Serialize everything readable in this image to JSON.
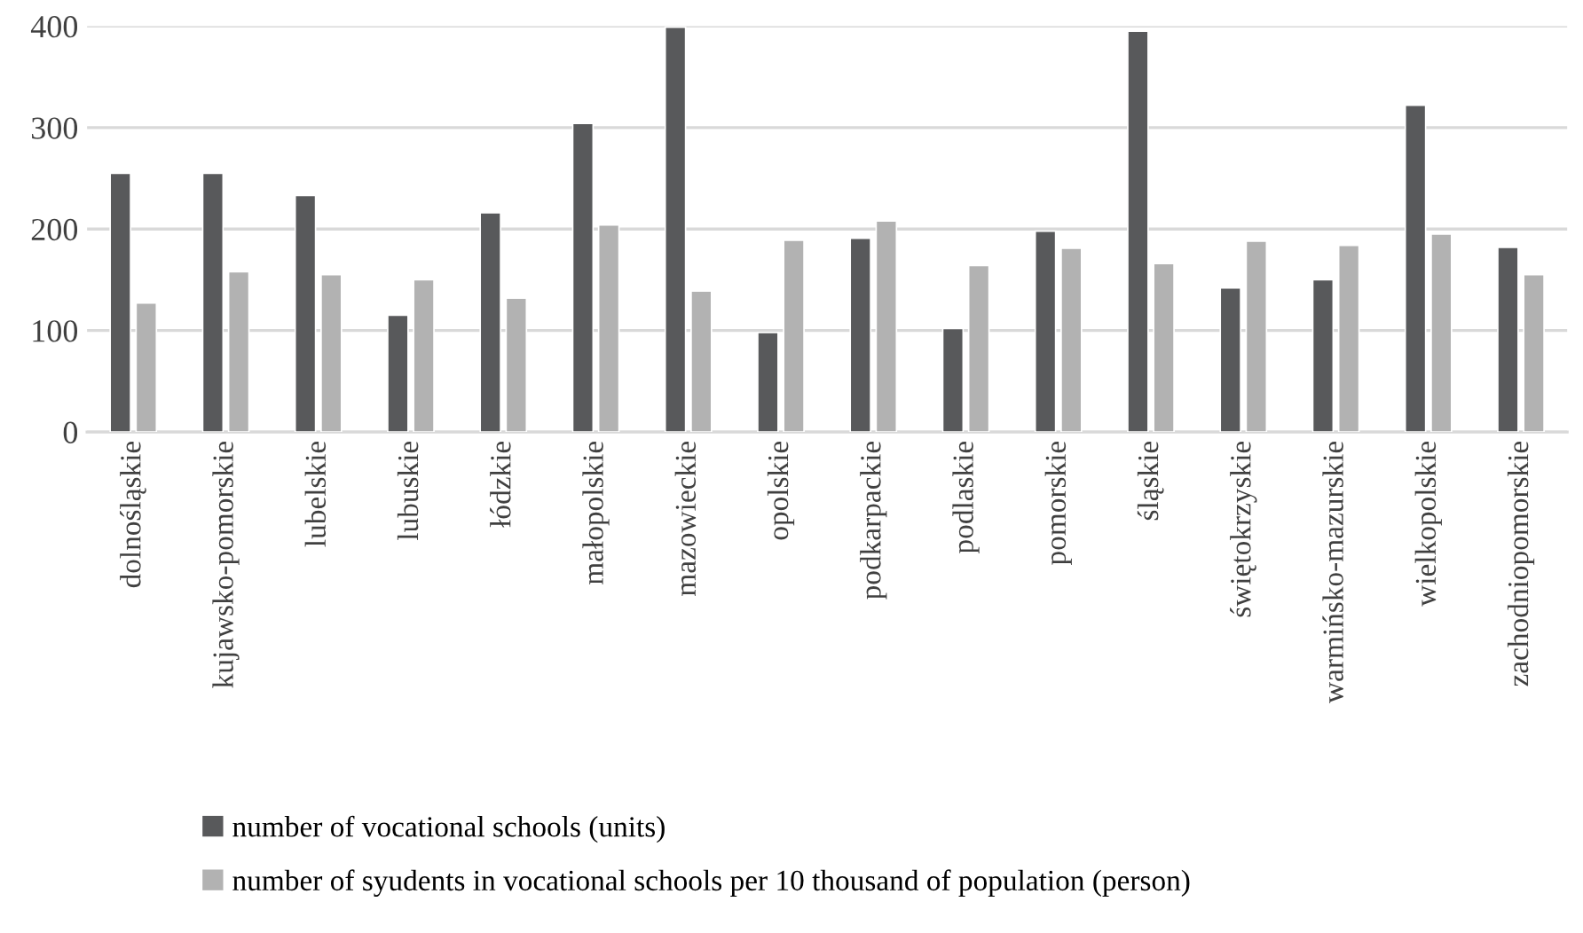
{
  "chart_data": {
    "type": "bar",
    "categories": [
      "dolnośląskie",
      "kujawsko-pomorskie",
      "lubelskie",
      "lubuskie",
      "łódzkie",
      "małopolskie",
      "mazowieckie",
      "opolskie",
      "podkarpackie",
      "podlaskie",
      "pomorskie",
      "śląskie",
      "świętokrzyskie",
      "warmińsko-mazurskie",
      "wielkopolskie",
      "zachodniopomorskie"
    ],
    "series": [
      {
        "name": "number of vocational schools (units)",
        "color": "#58595b",
        "values": [
          255,
          255,
          233,
          115,
          216,
          304,
          399,
          98,
          191,
          102,
          198,
          395,
          142,
          150,
          322,
          182
        ]
      },
      {
        "name": "number of syudents in vocational schools per 10 thousand of population (person)",
        "color": "#b2b2b2",
        "values": [
          127,
          158,
          155,
          150,
          132,
          204,
          139,
          189,
          208,
          164,
          181,
          166,
          188,
          184,
          195,
          155
        ]
      }
    ],
    "ylim": [
      0,
      400
    ],
    "yticks": [
      0,
      100,
      200,
      300,
      400
    ],
    "grid": "y",
    "legend": "bottom"
  }
}
